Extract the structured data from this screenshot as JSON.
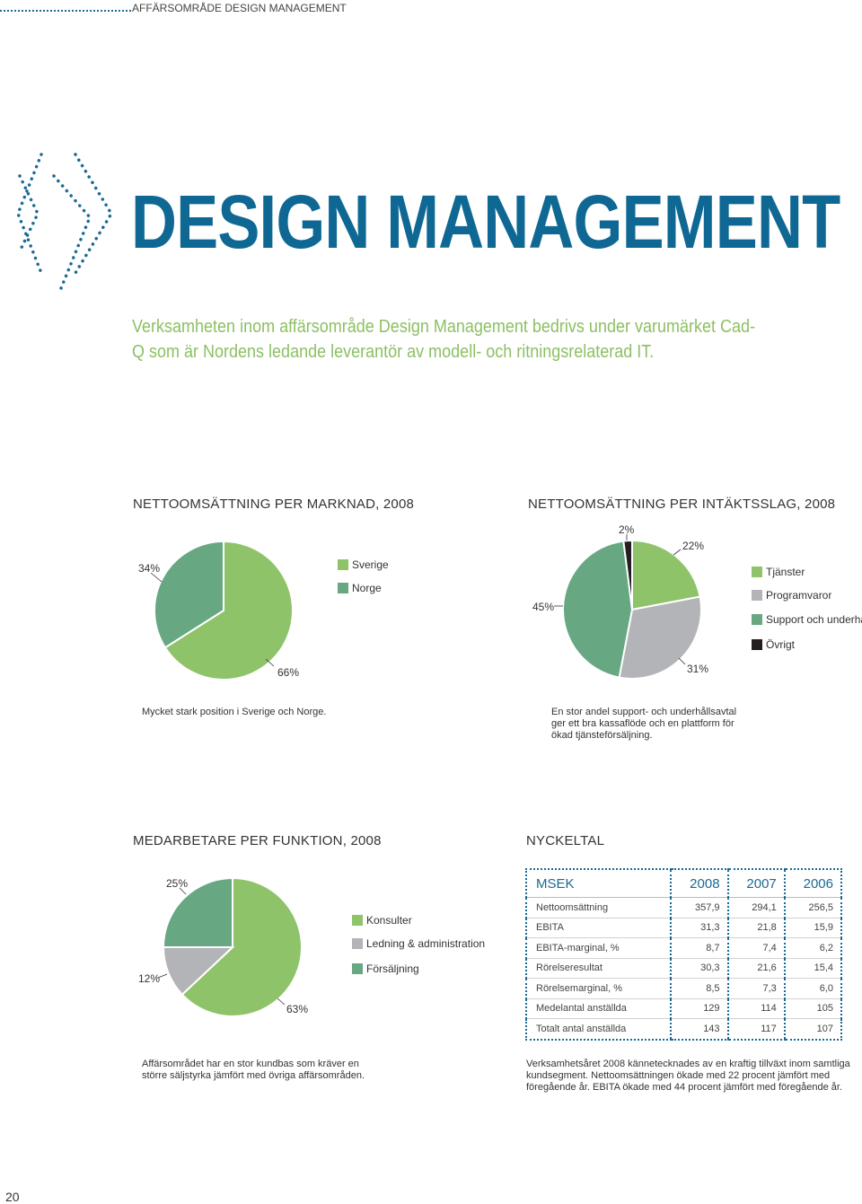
{
  "header": {
    "section_label": "AFFÄRSOMRÅDE DESIGN MANAGEMENT"
  },
  "title": "DESIGN MANAGEMENT",
  "intro": "Verksamheten inom affärsområde Design Management bedrivs under varumärket Cad-Q som är Nordens ledande leverantör av modell- och ritningsrelaterad IT.",
  "colors": {
    "brand_blue": "#0f6893",
    "light_green": "#8fc36a",
    "dark_green": "#67a782",
    "grey": "#b3b4b8",
    "black": "#231f20"
  },
  "chart_data": [
    {
      "type": "pie",
      "title": "NETTOOMSÄTTNING PER MARKNAD, 2008",
      "categories": [
        "Sverige",
        "Norge"
      ],
      "values": [
        66,
        34
      ],
      "labels": [
        "66%",
        "34%"
      ],
      "colors": [
        "#8fc36a",
        "#67a782"
      ]
    },
    {
      "type": "pie",
      "title": "NETTOOMSÄTTNING PER INTÄKTSSLAG, 2008",
      "categories": [
        "Tjänster",
        "Programvaror",
        "Support och underhåll",
        "Övrigt"
      ],
      "values": [
        22,
        31,
        45,
        2
      ],
      "labels": [
        "22%",
        "31%",
        "45%",
        "2%"
      ],
      "colors": [
        "#8fc36a",
        "#b3b4b8",
        "#67a782",
        "#231f20"
      ]
    },
    {
      "type": "pie",
      "title": "MEDARBETARE PER FUNKTION, 2008",
      "categories": [
        "Konsulter",
        "Ledning & administration",
        "Försäljning"
      ],
      "values": [
        63,
        12,
        25
      ],
      "labels": [
        "63%",
        "12%",
        "25%"
      ],
      "colors": [
        "#8fc36a",
        "#b3b4b8",
        "#67a782"
      ]
    }
  ],
  "captions": {
    "market": "Mycket stark position i Sverige och Norge.",
    "revenue_type": "En stor andel support- och underhållsavtal ger ett bra kassaflöde och en plattform för ökad tjänsteförsäljning.",
    "staff": "Affärsområdet har en stor kundbas som kräver en större säljstyrka jämfört med övriga affärsområden.",
    "keyfigures": "Verksamhetsåret 2008 kännetecknades av en kraftig tillväxt inom samtliga kundsegment. Nettoomsättningen ökade med 22 procent jämfört med föregående år. EBITA ökade med 44 procent jämfört med föregående år."
  },
  "keyfigures": {
    "title": "NYCKELTAL",
    "headers": [
      "MSEK",
      "2008",
      "2007",
      "2006"
    ],
    "rows": [
      [
        "Nettoomsättning",
        "357,9",
        "294,1",
        "256,5"
      ],
      [
        "EBITA",
        "31,3",
        "21,8",
        "15,9"
      ],
      [
        "EBITA-marginal, %",
        "8,7",
        "7,4",
        "6,2"
      ],
      [
        "Rörelseresultat",
        "30,3",
        "21,6",
        "15,4"
      ],
      [
        "Rörelsemarginal, %",
        "8,5",
        "7,3",
        "6,0"
      ],
      [
        "Medelantal anställda",
        "129",
        "114",
        "105"
      ],
      [
        "Totalt antal anställda",
        "143",
        "117",
        "107"
      ]
    ]
  },
  "page_number": "20"
}
